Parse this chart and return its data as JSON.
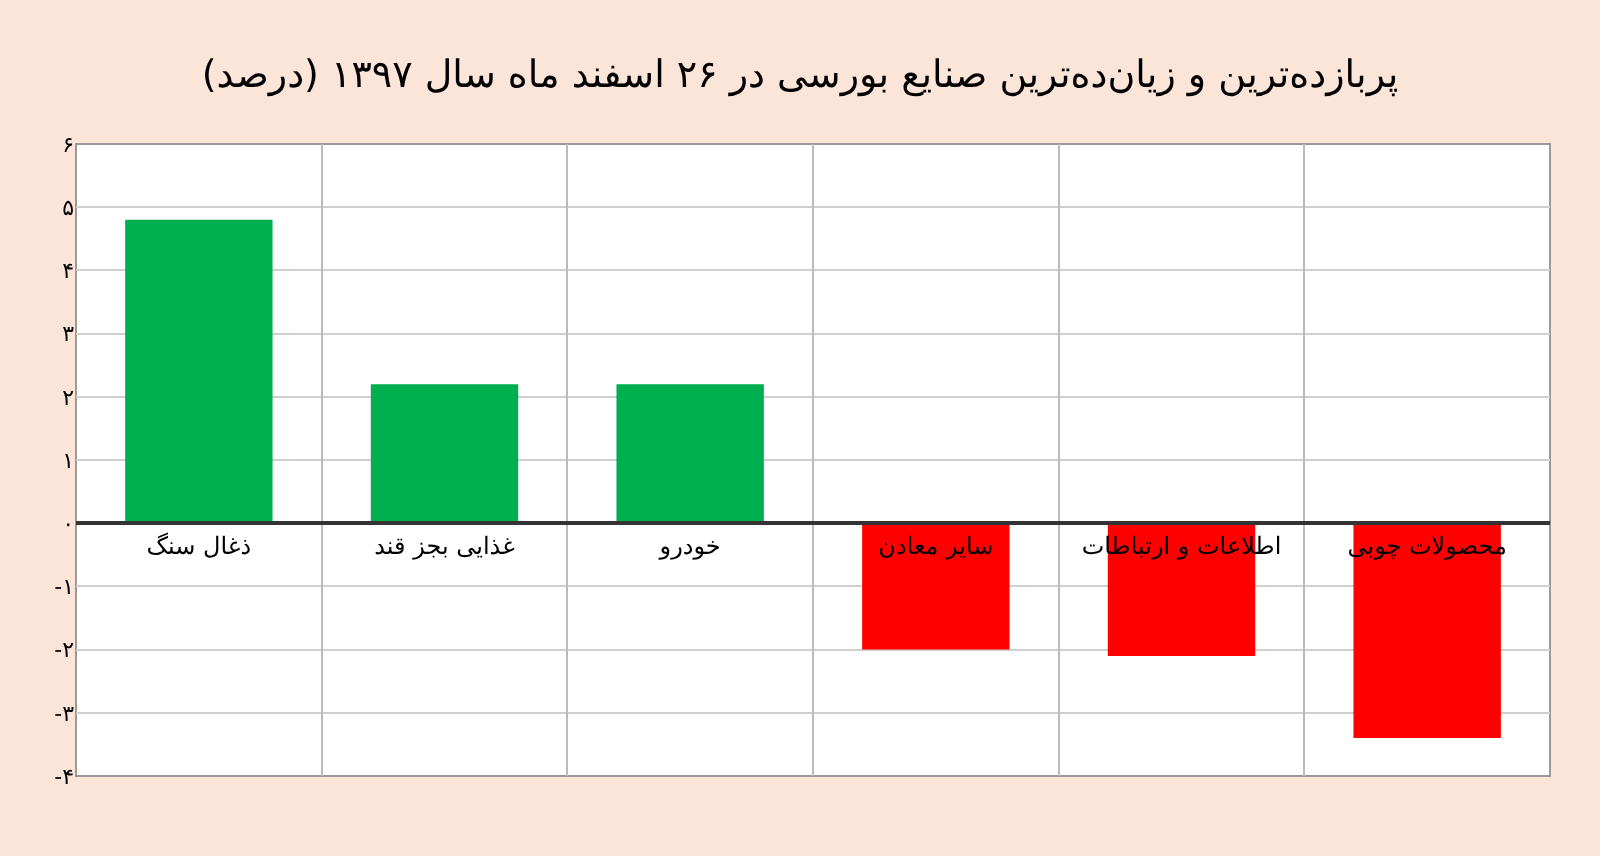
{
  "chart_data": {
    "type": "bar",
    "title": "پربازده‌ترین و زیان‌ده‌ترین صنایع بورسی در ۲۶ اسفند ماه سال ۱۳۹۷ (درصد)",
    "categories": [
      "ذغال سنگ",
      "غذایی بجز قند",
      "خودرو",
      "سایر معادن",
      "اطلاعات و ارتباطات",
      "محصولات چوبی"
    ],
    "values": [
      4.8,
      2.2,
      2.2,
      -2.0,
      -2.1,
      -3.4
    ],
    "colors": [
      "#00b050",
      "#00b050",
      "#00b050",
      "#ff0000",
      "#ff0000",
      "#ff0000"
    ],
    "ylim": [
      -4,
      6
    ],
    "yticks": [
      {
        "value": -4,
        "label": "-۴"
      },
      {
        "value": -3,
        "label": "-۳"
      },
      {
        "value": -2,
        "label": "-۲"
      },
      {
        "value": -1,
        "label": "-۱"
      },
      {
        "value": 0,
        "label": "۰"
      },
      {
        "value": 1,
        "label": "۱"
      },
      {
        "value": 2,
        "label": "۲"
      },
      {
        "value": 3,
        "label": "۳"
      },
      {
        "value": 4,
        "label": "۴"
      },
      {
        "value": 5,
        "label": "۵"
      },
      {
        "value": 6,
        "label": "۶"
      }
    ],
    "grid": true
  }
}
